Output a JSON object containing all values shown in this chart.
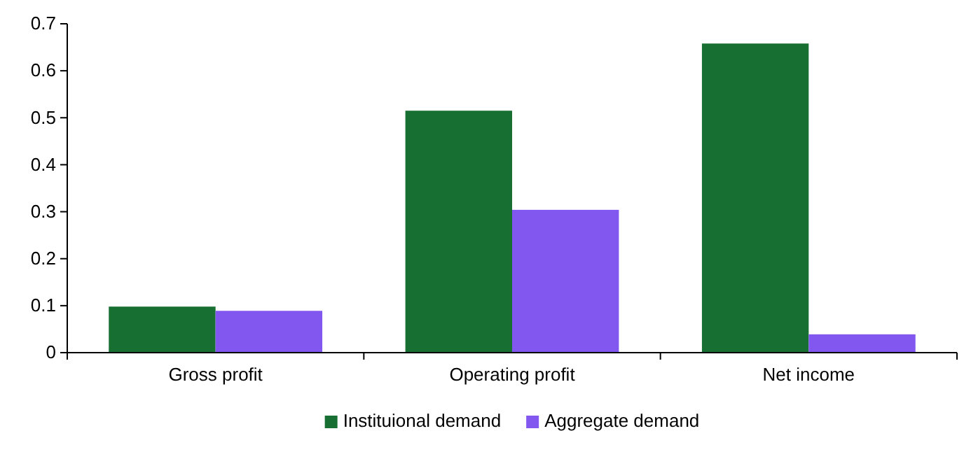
{
  "chart_data": {
    "type": "bar",
    "categories": [
      "Gross profit",
      "Operating profit",
      "Net income"
    ],
    "series": [
      {
        "name": "Instituional demand",
        "color": "#177031",
        "values": [
          0.098,
          0.515,
          0.658
        ]
      },
      {
        "name": "Aggregate demand",
        "color": "#8257f0",
        "values": [
          0.089,
          0.304,
          0.039
        ]
      }
    ],
    "ylim": [
      0,
      0.7
    ],
    "yticks": [
      0,
      0.1,
      0.2,
      0.3,
      0.4,
      0.5,
      0.6,
      0.7
    ],
    "grid": false,
    "legend": "bottom"
  }
}
